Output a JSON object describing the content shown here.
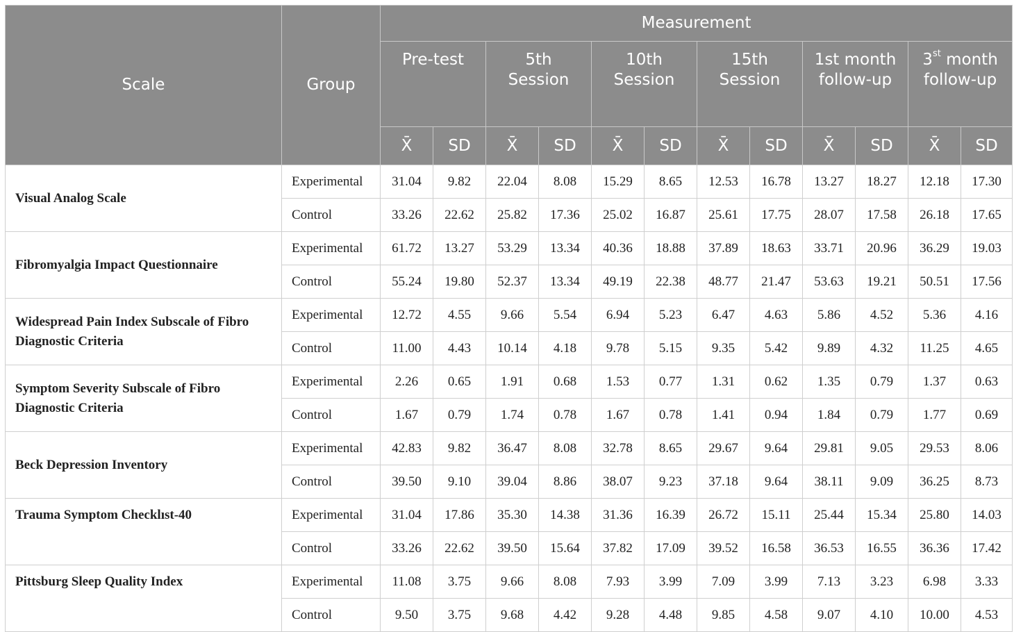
{
  "headers": {
    "scale": "Scale",
    "group": "Group",
    "measurement": "Measurement",
    "periods": [
      {
        "label": "Pre-test",
        "sup": ""
      },
      {
        "label": "5th Session",
        "sup": ""
      },
      {
        "label": "10th Session",
        "sup": ""
      },
      {
        "label": "15th Session",
        "sup": ""
      },
      {
        "label": "1st month follow-up",
        "sup": ""
      },
      {
        "label_pre": "3",
        "sup": "st",
        "label": " month follow-up"
      }
    ],
    "mean": "X̄",
    "sd": "SD"
  },
  "rows": [
    {
      "scale": "Visual Analog Scale",
      "groups": [
        {
          "group": "Experimental",
          "values": [
            "31.04",
            "9.82",
            "22.04",
            "8.08",
            "15.29",
            "8.65",
            "12.53",
            "16.78",
            "13.27",
            "18.27",
            "12.18",
            "17.30"
          ]
        },
        {
          "group": "Control",
          "values": [
            "33.26",
            "22.62",
            "25.82",
            "17.36",
            "25.02",
            "16.87",
            "25.61",
            "17.75",
            "28.07",
            "17.58",
            "26.18",
            "17.65"
          ]
        }
      ]
    },
    {
      "scale": "Fibromyalgia Impact Questionnaire",
      "groups": [
        {
          "group": "Experimental",
          "values": [
            "61.72",
            "13.27",
            "53.29",
            "13.34",
            "40.36",
            "18.88",
            "37.89",
            "18.63",
            "33.71",
            "20.96",
            "36.29",
            "19.03"
          ]
        },
        {
          "group": "Control",
          "values": [
            "55.24",
            "19.80",
            "52.37",
            "13.34",
            "49.19",
            "22.38",
            "48.77",
            "21.47",
            "53.63",
            "19.21",
            "50.51",
            "17.56"
          ]
        }
      ]
    },
    {
      "scale": "Widespread Pain Index Subscale of Fibro Diagnostic Criteria",
      "groups": [
        {
          "group": "Experimental",
          "values": [
            "12.72",
            "4.55",
            "9.66",
            "5.54",
            "6.94",
            "5.23",
            "6.47",
            "4.63",
            "5.86",
            "4.52",
            "5.36",
            "4.16"
          ]
        },
        {
          "group": "Control",
          "values": [
            "11.00",
            "4.43",
            "10.14",
            "4.18",
            "9.78",
            "5.15",
            "9.35",
            "5.42",
            "9.89",
            "4.32",
            "11.25",
            "4.65"
          ]
        }
      ]
    },
    {
      "scale": "Symptom Severity Subscale of Fibro Diagnostic Criteria",
      "groups": [
        {
          "group": "Experimental",
          "values": [
            "2.26",
            "0.65",
            "1.91",
            "0.68",
            "1.53",
            "0.77",
            "1.31",
            "0.62",
            "1.35",
            "0.79",
            "1.37",
            "0.63"
          ]
        },
        {
          "group": "Control",
          "values": [
            "1.67",
            "0.79",
            "1.74",
            "0.78",
            "1.67",
            "0.78",
            "1.41",
            "0.94",
            "1.84",
            "0.79",
            "1.77",
            "0.69"
          ]
        }
      ]
    },
    {
      "scale": "Beck Depression Inventory",
      "groups": [
        {
          "group": "Experimental",
          "values": [
            "42.83",
            "9.82",
            "36.47",
            "8.08",
            "32.78",
            "8.65",
            "29.67",
            "9.64",
            "29.81",
            "9.05",
            "29.53",
            "8.06"
          ]
        },
        {
          "group": "Control",
          "values": [
            "39.50",
            "9.10",
            "39.04",
            "8.86",
            "38.07",
            "9.23",
            "37.18",
            "9.64",
            "38.11",
            "9.09",
            "36.25",
            "8.73"
          ]
        }
      ]
    },
    {
      "scale": "Trauma Symptom Checklıst-40",
      "groups": [
        {
          "group": "Experimental",
          "values": [
            "31.04",
            "17.86",
            "35.30",
            "14.38",
            "31.36",
            "16.39",
            "26.72",
            "15.11",
            "25.44",
            "15.34",
            "25.80",
            "14.03"
          ]
        },
        {
          "group": "Control",
          "values": [
            "33.26",
            "22.62",
            "39.50",
            "15.64",
            "37.82",
            "17.09",
            "39.52",
            "16.58",
            "36.53",
            "16.55",
            "36.36",
            "17.42"
          ]
        }
      ]
    },
    {
      "scale": "Pittsburg Sleep Quality Index",
      "groups": [
        {
          "group": "Experimental",
          "values": [
            "11.08",
            "3.75",
            "9.66",
            "8.08",
            "7.93",
            "3.99",
            "7.09",
            "3.99",
            "7.13",
            "3.23",
            "6.98",
            "3.33"
          ]
        },
        {
          "group": "Control",
          "values": [
            "9.50",
            "3.75",
            "9.68",
            "4.42",
            "9.28",
            "4.48",
            "9.85",
            "4.58",
            "9.07",
            "4.10",
            "10.00",
            "4.53"
          ]
        }
      ]
    }
  ]
}
